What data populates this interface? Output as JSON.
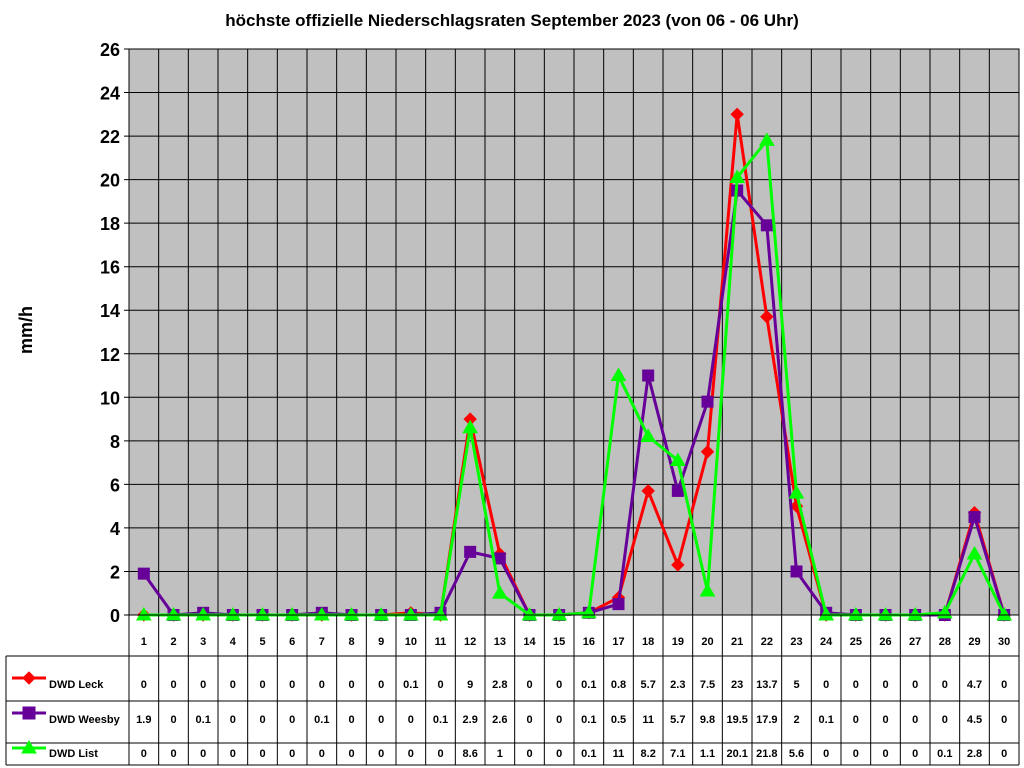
{
  "chart_data": {
    "type": "line",
    "title": "höchste offizielle Niederschlagsraten September 2023 (von 06 - 06 Uhr)",
    "ylabel": "mm/h",
    "xlabel": "",
    "ylim": [
      0,
      26
    ],
    "yticks": [
      0,
      2,
      4,
      6,
      8,
      10,
      12,
      14,
      16,
      18,
      20,
      22,
      24,
      26
    ],
    "grid": true,
    "legend_placement": "data-table-left",
    "categories": [
      "1",
      "2",
      "3",
      "4",
      "5",
      "6",
      "7",
      "8",
      "9",
      "10",
      "11",
      "12",
      "13",
      "14",
      "15",
      "16",
      "17",
      "18",
      "19",
      "20",
      "21",
      "22",
      "23",
      "24",
      "25",
      "26",
      "27",
      "28",
      "29",
      "30"
    ],
    "series": [
      {
        "name": "DWD Leck",
        "color": "#ff0000",
        "marker": "diamond",
        "values": [
          0,
          0,
          0,
          0,
          0,
          0,
          0,
          0,
          0,
          0.1,
          0,
          9,
          2.8,
          0,
          0,
          0.1,
          0.8,
          5.7,
          2.3,
          7.5,
          23,
          13.7,
          5,
          0,
          0,
          0,
          0,
          0,
          4.7,
          0
        ],
        "labels": [
          "0",
          "0",
          "0",
          "0",
          "0",
          "0",
          "0",
          "0",
          "0",
          "0.1",
          "0",
          "9",
          "2.8",
          "0",
          "0",
          "0.1",
          "0.8",
          "5.7",
          "2.3",
          "7.5",
          "23",
          "13.7",
          "5",
          "0",
          "0",
          "0",
          "0",
          "0",
          "4.7",
          "0"
        ]
      },
      {
        "name": "DWD Weesby",
        "color": "#660099",
        "marker": "square",
        "values": [
          1.9,
          0,
          0.1,
          0,
          0,
          0,
          0.1,
          0,
          0,
          0,
          0.1,
          2.9,
          2.6,
          0,
          0,
          0.1,
          0.5,
          11,
          5.7,
          9.8,
          19.5,
          17.9,
          2,
          0.1,
          0,
          0,
          0,
          0,
          4.5,
          0
        ],
        "labels": [
          "1.9",
          "0",
          "0.1",
          "0",
          "0",
          "0",
          "0.1",
          "0",
          "0",
          "0",
          "0.1",
          "2.9",
          "2.6",
          "0",
          "0",
          "0.1",
          "0.5",
          "11",
          "5.7",
          "9.8",
          "19.5",
          "17.9",
          "2",
          "0.1",
          "0",
          "0",
          "0",
          "0",
          "4.5",
          "0"
        ]
      },
      {
        "name": "DWD List",
        "color": "#00ff00",
        "marker": "triangle",
        "values": [
          0,
          0,
          0,
          0,
          0,
          0,
          0,
          0,
          0,
          0,
          0,
          8.6,
          1,
          0,
          0,
          0.1,
          11,
          8.2,
          7.1,
          1.1,
          20.1,
          21.8,
          5.6,
          0,
          0,
          0,
          0,
          0.1,
          2.8,
          0
        ],
        "labels": [
          "0",
          "0",
          "0",
          "0",
          "0",
          "0",
          "0",
          "0",
          "0",
          "0",
          "0",
          "8.6",
          "1",
          "0",
          "0",
          "0.1",
          "11",
          "8.2",
          "7.1",
          "1.1",
          "20.1",
          "21.8",
          "5.6",
          "0",
          "0",
          "0",
          "0",
          "0.1",
          "2.8",
          "0"
        ]
      }
    ]
  },
  "colors": {
    "plot_background": "#c0c0c0",
    "page_background": "#ffffff",
    "grid": "#000000"
  }
}
